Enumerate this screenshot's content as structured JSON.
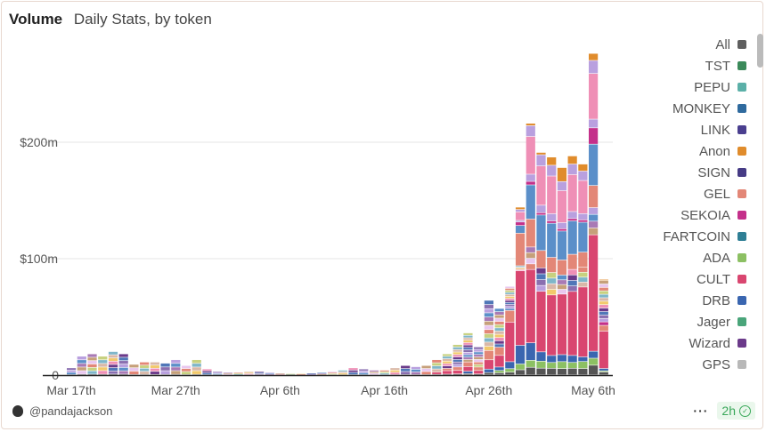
{
  "header": {
    "title": "Volume",
    "subtitle": "Daily Stats, by token"
  },
  "legend": [
    {
      "label": "All",
      "color": "#5f5f5f"
    },
    {
      "label": "TST",
      "color": "#3b8a5a"
    },
    {
      "label": "PEPU",
      "color": "#5bb0a8"
    },
    {
      "label": "MONKEY",
      "color": "#2f6a9e"
    },
    {
      "label": "LINK",
      "color": "#4a3f8f"
    },
    {
      "label": "Anon",
      "color": "#e08c2c"
    },
    {
      "label": "SIGN",
      "color": "#463b85"
    },
    {
      "label": "GEL",
      "color": "#e38777"
    },
    {
      "label": "SEKOIA",
      "color": "#c4308a"
    },
    {
      "label": "FARTCOIN",
      "color": "#2f7f95"
    },
    {
      "label": "ADA",
      "color": "#8cc063"
    },
    {
      "label": "CULT",
      "color": "#d94670"
    },
    {
      "label": "DRB",
      "color": "#3a66b0"
    },
    {
      "label": "Jager",
      "color": "#4aa57a"
    },
    {
      "label": "Wizard",
      "color": "#6b3a8a"
    },
    {
      "label": "GPS",
      "color": "#b8b8b8"
    }
  ],
  "footer": {
    "author": "@pandajackson",
    "age": "2h",
    "more": "···"
  },
  "chart_data": {
    "type": "bar",
    "stacked": true,
    "title": "Volume",
    "subtitle": "Daily Stats, by token",
    "xlabel": "",
    "ylabel": "",
    "ylim": [
      0,
      290
    ],
    "y_ticks": [
      {
        "value": 0,
        "label": "0"
      },
      {
        "value": 100,
        "label": "$100m"
      },
      {
        "value": 200,
        "label": "$200m"
      }
    ],
    "x_ticks": [
      {
        "index": 0,
        "label": "Mar 17th"
      },
      {
        "index": 10,
        "label": "Mar 27th"
      },
      {
        "index": 20,
        "label": "Apr 6th"
      },
      {
        "index": 30,
        "label": "Apr 16th"
      },
      {
        "index": 40,
        "label": "Apr 26th"
      },
      {
        "index": 50,
        "label": "May 6th"
      }
    ],
    "grid": true,
    "legend_position": "right",
    "start_date": "Mar 17",
    "totals": [
      6,
      16,
      18,
      16,
      20,
      18,
      9,
      11,
      11,
      10,
      13,
      8,
      13,
      5,
      3,
      2,
      2,
      3,
      3,
      2,
      1.5,
      1,
      1,
      1.5,
      2,
      3,
      4,
      6,
      5,
      4,
      4,
      6,
      8,
      7,
      8,
      13,
      18,
      26,
      36,
      24,
      64,
      57,
      76,
      144,
      216,
      191,
      187,
      178,
      188,
      181,
      276,
      82
    ],
    "series": [
      {
        "name": "ADA",
        "values": {
          "41": 2,
          "42": 3,
          "43": 5,
          "44": 6,
          "45": 6,
          "46": 5,
          "47": 6,
          "48": 5,
          "49": 6,
          "50": 6,
          "51": 1
        }
      },
      {
        "name": "DRB",
        "values": {
          "38": 2,
          "40": 3,
          "41": 3,
          "42": 6,
          "43": 16,
          "44": 15,
          "45": 8,
          "46": 6,
          "47": 6,
          "48": 6,
          "49": 4,
          "50": 6,
          "51": 2
        }
      },
      {
        "name": "CULT",
        "values": {
          "35": 2,
          "36": 3,
          "37": 3,
          "38": 4,
          "39": 3,
          "40": 8,
          "41": 10,
          "42": 34,
          "43": 64,
          "44": 63,
          "45": 52,
          "46": 52,
          "47": 52,
          "48": 55,
          "49": 60,
          "50": 100,
          "51": 32
        }
      },
      {
        "name": "GEL",
        "values": {
          "36": 2,
          "37": 3,
          "38": 4,
          "39": 3,
          "40": 8,
          "41": 7,
          "42": 10,
          "43": 28,
          "44": 24,
          "45": 15,
          "46": 13,
          "47": 13,
          "48": 13,
          "49": 13,
          "50": 19,
          "51": 5
        }
      },
      {
        "name": "SEKOIA",
        "values": {
          "43": 3,
          "44": 3,
          "45": 2,
          "46": 2,
          "47": 2,
          "48": 2,
          "49": 2,
          "50": 14,
          "51": 3
        }
      },
      {
        "name": "Anon",
        "values": {
          "43": 2,
          "44": 2,
          "45": 2,
          "46": 7,
          "47": 12,
          "48": 7,
          "49": 6,
          "50": 6,
          "51": 1
        }
      }
    ]
  }
}
